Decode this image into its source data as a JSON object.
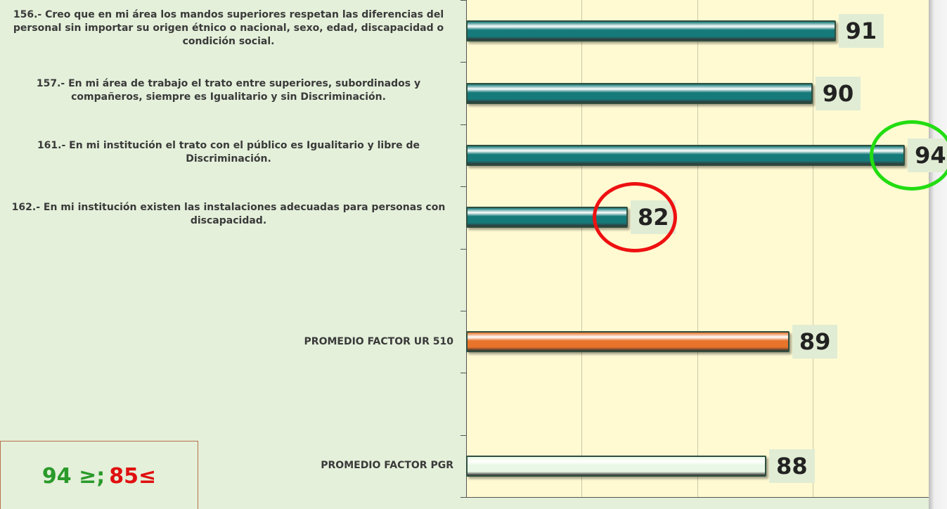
{
  "chart_data": {
    "type": "barh",
    "categories": [
      "156.- Creo que en mi área los mandos superiores respetan las diferencias del personal sin importar su origen étnico o nacional, sexo, edad, discapacidad o condición social.",
      "157.- En mi área de trabajo el trato entre superiores, subordinados y compañeros, siempre es Igualitario y sin Discriminación.",
      "161.- En mi institución el trato con el público es Igualitario y libre de Discriminación.",
      "162.- En mi institución existen las instalaciones adecuadas para personas con discapacidad.",
      null,
      "PROMEDIO FACTOR UR 510",
      null,
      "PROMEDIO FACTOR PGR"
    ],
    "values": [
      91,
      90,
      94,
      82,
      null,
      89,
      null,
      88
    ],
    "colors": [
      "#167a7a",
      "#167a7a",
      "#167a7a",
      "#167a7a",
      null,
      "#e8732a",
      null,
      "#e9f8e6"
    ],
    "xlim": [
      75,
      95
    ],
    "xticks": [
      80,
      85,
      90
    ],
    "grid": true,
    "highlights": [
      {
        "index": 2,
        "color": "#22dd11"
      },
      {
        "index": 3,
        "color": "#ee1111"
      }
    ],
    "annotations": [
      {
        "text": "94 ≥;",
        "color": "#2a9a2a"
      },
      {
        "text": "85≤",
        "color": "#e01010"
      }
    ]
  }
}
